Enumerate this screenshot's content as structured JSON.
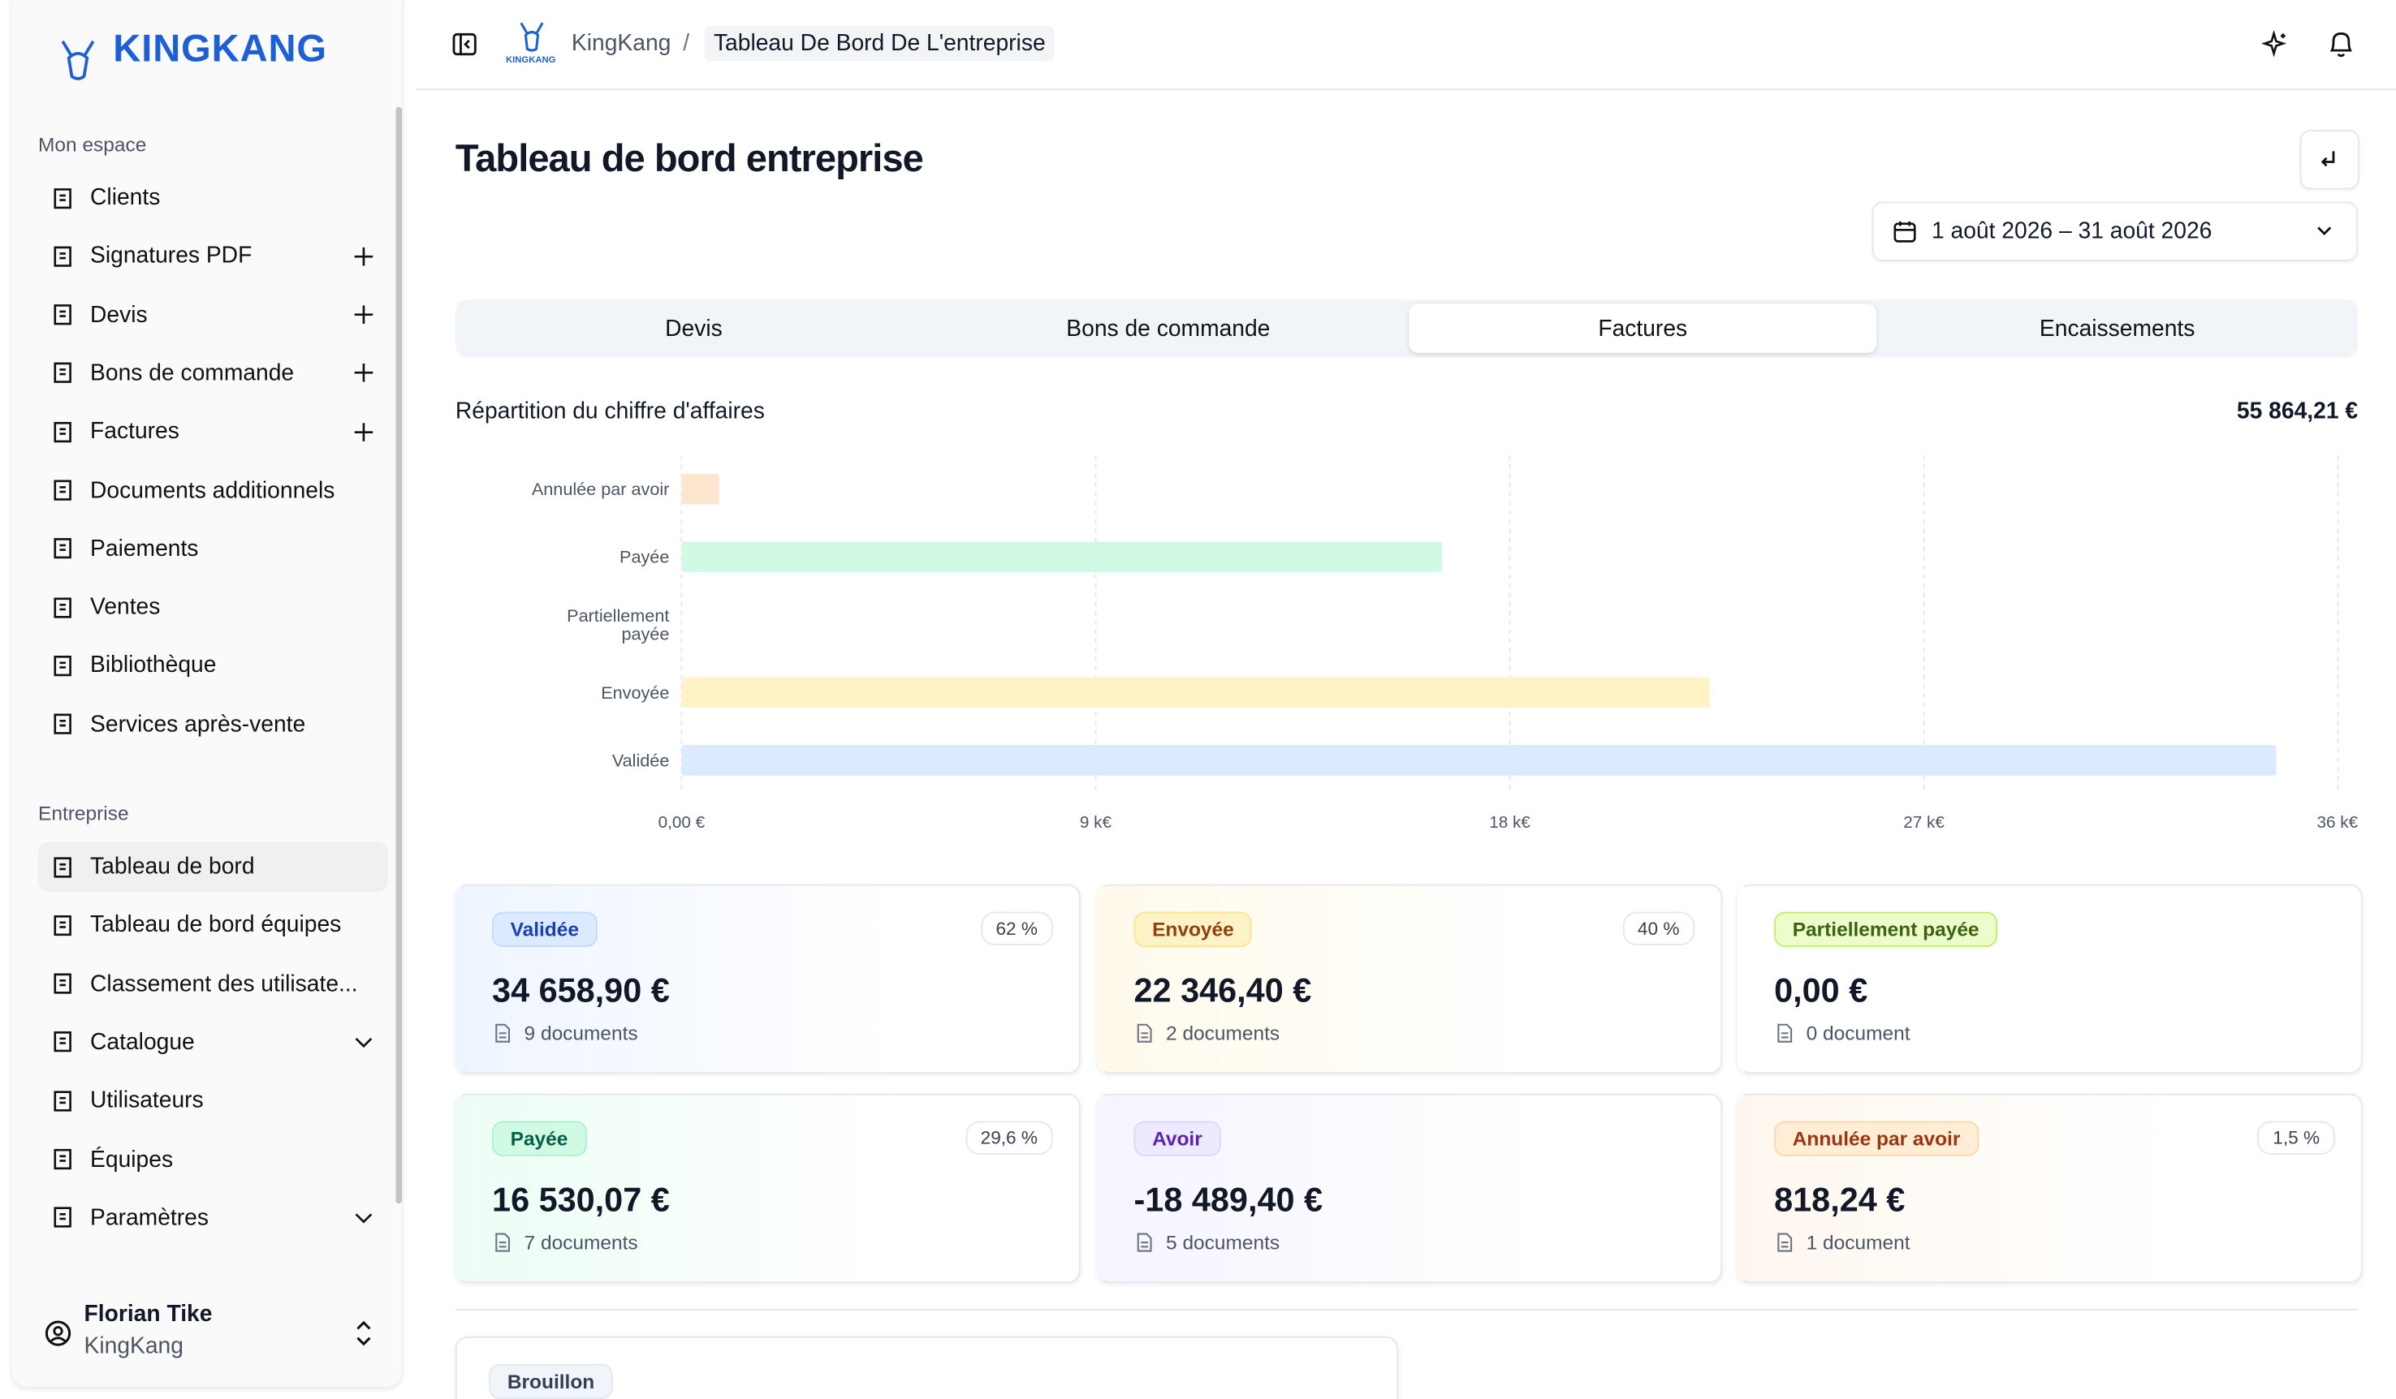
{
  "sidebar": {
    "brand": "KINGKANG",
    "sections": [
      {
        "title": "Mon espace",
        "items": [
          {
            "label": "Clients"
          },
          {
            "label": "Signatures PDF",
            "add": true
          },
          {
            "label": "Devis",
            "add": true
          },
          {
            "label": "Bons de commande",
            "add": true
          },
          {
            "label": "Factures",
            "add": true
          },
          {
            "label": "Documents additionnels"
          },
          {
            "label": "Paiements"
          },
          {
            "label": "Ventes"
          },
          {
            "label": "Bibliothèque"
          },
          {
            "label": "Services après-vente"
          }
        ]
      },
      {
        "title": "Entreprise",
        "items": [
          {
            "label": "Tableau de bord",
            "active": true
          },
          {
            "label": "Tableau de bord équipes"
          },
          {
            "label": "Classement des utilisate..."
          },
          {
            "label": "Catalogue",
            "expand": true
          },
          {
            "label": "Utilisateurs"
          },
          {
            "label": "Équipes"
          },
          {
            "label": "Paramètres",
            "expand": true
          }
        ]
      }
    ],
    "user": {
      "name": "Florian Tike",
      "org": "KingKang"
    }
  },
  "header": {
    "logo": "KINGKANG",
    "breadcrumb": [
      "KingKang",
      "Tableau De Bord De L'entreprise"
    ],
    "separator": "/"
  },
  "page": {
    "title": "Tableau de bord entreprise",
    "date_range": "1 août 2026 – 31 août 2026",
    "tabs": [
      "Devis",
      "Bons de commande",
      "Factures",
      "Encaissements"
    ],
    "active_tab": 2
  },
  "chart_data": {
    "type": "bar",
    "orientation": "horizontal",
    "title": "Répartition du chiffre d'affaires",
    "total": "55 864,21 €",
    "categories": [
      "Annulée par avoir",
      "Payée",
      "Partiellement payée",
      "Envoyée",
      "Validée"
    ],
    "values": [
      818.24,
      16530.07,
      0,
      22346.4,
      34658.9
    ],
    "colors": [
      "#fde6cf",
      "#d1fae5",
      "#ecfccb",
      "#fef3c7",
      "#dbeafe"
    ],
    "xlim": [
      0,
      36000
    ],
    "xticks": [
      {
        "value": 0,
        "label": "0,00 €"
      },
      {
        "value": 9000,
        "label": "9 k€"
      },
      {
        "value": 18000,
        "label": "18 k€"
      },
      {
        "value": 27000,
        "label": "27 k€"
      },
      {
        "value": 36000,
        "label": "36 k€"
      }
    ],
    "grid": true
  },
  "cards": [
    {
      "label": "Validée",
      "percent": "62 %",
      "amount": "34 658,90 €",
      "documents": "9 documents",
      "bg": "#dbeafe",
      "fg": "#1e40af",
      "border": "#bfdbfe",
      "tint": "#eff5ff"
    },
    {
      "label": "Envoyée",
      "percent": "40 %",
      "amount": "22 346,40 €",
      "documents": "2 documents",
      "bg": "#fef3c7",
      "fg": "#92400e",
      "border": "#fde68a",
      "tint": "#fffaeb"
    },
    {
      "label": "Partiellement payée",
      "amount": "0,00 €",
      "documents": "0 document",
      "bg": "#ecfccb",
      "fg": "#3f6212",
      "border": "#bef264",
      "tint": "#ffffff"
    },
    {
      "label": "Payée",
      "percent": "29,6 %",
      "amount": "16 530,07 €",
      "documents": "7 documents",
      "bg": "#d1fae5",
      "fg": "#065f46",
      "border": "#a7f3d0",
      "tint": "#edfdf5"
    },
    {
      "label": "Avoir",
      "amount": "-18 489,40 €",
      "documents": "5 documents",
      "bg": "#ede9fe",
      "fg": "#5b21b6",
      "border": "#ddd6fe",
      "tint": "#f6f4ff"
    },
    {
      "label": "Annulée par avoir",
      "percent": "1,5 %",
      "amount": "818,24 €",
      "documents": "1 document",
      "bg": "#ffedd5",
      "fg": "#9a3412",
      "border": "#fed7aa",
      "tint": "#fff7ef"
    }
  ],
  "draft_card": {
    "label": "Brouillon",
    "bg": "#f1f5f9",
    "fg": "#334155",
    "border": "#e2e8f0"
  }
}
